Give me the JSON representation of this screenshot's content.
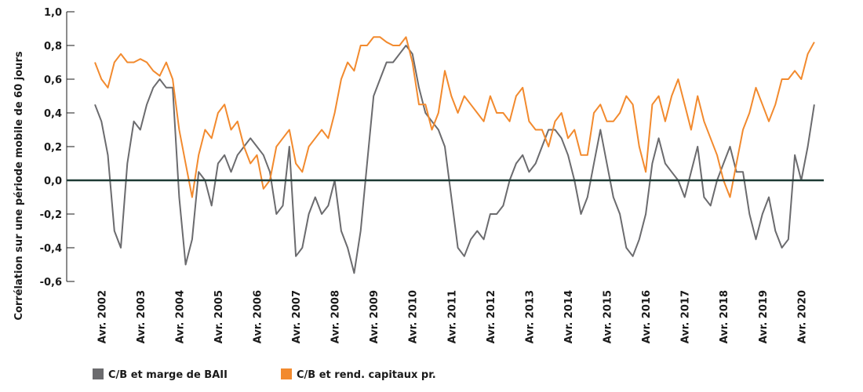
{
  "chart_data": {
    "type": "line",
    "y_label": "Corrélation sur une période mobile de 60 jours",
    "categories": [
      null,
      "Avr. 2002",
      null,
      null,
      null,
      null,
      null,
      "Avr. 2003",
      null,
      null,
      null,
      null,
      null,
      "Avr. 2004",
      null,
      null,
      null,
      null,
      null,
      "Avr. 2005",
      null,
      null,
      null,
      null,
      null,
      "Avr. 2006",
      null,
      null,
      null,
      null,
      null,
      "Avr. 2007",
      null,
      null,
      null,
      null,
      null,
      "Avr. 2008",
      null,
      null,
      null,
      null,
      null,
      "Avr. 2009",
      null,
      null,
      null,
      null,
      null,
      "Avr. 2010",
      null,
      null,
      null,
      null,
      null,
      "Avr. 2011",
      null,
      null,
      null,
      null,
      null,
      "Avr. 2012",
      null,
      null,
      null,
      null,
      null,
      "Avr. 2013",
      null,
      null,
      null,
      null,
      null,
      "Avr. 2014",
      null,
      null,
      null,
      null,
      null,
      "Avr. 2015",
      null,
      null,
      null,
      null,
      null,
      "Avr. 2016",
      null,
      null,
      null,
      null,
      null,
      "Avr. 2017",
      null,
      null,
      null,
      null,
      null,
      "Avr. 2018",
      null,
      null,
      null,
      null,
      null,
      "Avr. 2019",
      null,
      null,
      null,
      null,
      null,
      "Avr. 2020",
      null,
      null
    ],
    "series": [
      {
        "name": "C/B et marge de BAII",
        "color": "#6b6b6e",
        "values": [
          0.45,
          0.35,
          0.15,
          -0.3,
          -0.4,
          0.1,
          0.35,
          0.3,
          0.45,
          0.55,
          0.6,
          0.55,
          0.55,
          -0.1,
          -0.5,
          -0.35,
          0.05,
          0.0,
          -0.15,
          0.1,
          0.15,
          0.05,
          0.15,
          0.2,
          0.25,
          0.2,
          0.15,
          0.05,
          -0.2,
          -0.15,
          0.2,
          -0.45,
          -0.4,
          -0.2,
          -0.1,
          -0.2,
          -0.15,
          0.0,
          -0.3,
          -0.4,
          -0.55,
          -0.3,
          0.1,
          0.5,
          0.6,
          0.7,
          0.7,
          0.75,
          0.8,
          0.75,
          0.55,
          0.4,
          0.35,
          0.3,
          0.2,
          -0.1,
          -0.4,
          -0.45,
          -0.35,
          -0.3,
          -0.35,
          -0.2,
          -0.2,
          -0.15,
          0.0,
          0.1,
          0.15,
          0.05,
          0.1,
          0.2,
          0.3,
          0.3,
          0.25,
          0.15,
          0.0,
          -0.2,
          -0.1,
          0.1,
          0.3,
          0.1,
          -0.1,
          -0.2,
          -0.4,
          -0.45,
          -0.35,
          -0.2,
          0.1,
          0.25,
          0.1,
          0.05,
          0.0,
          -0.1,
          0.05,
          0.2,
          -0.1,
          -0.15,
          0.0,
          0.1,
          0.2,
          0.05,
          0.05,
          -0.2,
          -0.35,
          -0.2,
          -0.1,
          -0.3,
          -0.4,
          -0.35,
          0.15,
          0.0,
          0.2,
          0.45
        ]
      },
      {
        "name": "C/B et rend. capitaux pr.",
        "color": "#f28a2e",
        "values": [
          0.7,
          0.6,
          0.55,
          0.7,
          0.75,
          0.7,
          0.7,
          0.72,
          0.7,
          0.65,
          0.62,
          0.7,
          0.6,
          0.3,
          0.1,
          -0.1,
          0.15,
          0.3,
          0.25,
          0.4,
          0.45,
          0.3,
          0.35,
          0.2,
          0.1,
          0.15,
          -0.05,
          0.0,
          0.2,
          0.25,
          0.3,
          0.1,
          0.05,
          0.2,
          0.25,
          0.3,
          0.25,
          0.4,
          0.6,
          0.7,
          0.65,
          0.8,
          0.8,
          0.85,
          0.85,
          0.82,
          0.8,
          0.8,
          0.85,
          0.7,
          0.45,
          0.45,
          0.3,
          0.4,
          0.65,
          0.5,
          0.4,
          0.5,
          0.45,
          0.4,
          0.35,
          0.5,
          0.4,
          0.4,
          0.35,
          0.5,
          0.55,
          0.35,
          0.3,
          0.3,
          0.2,
          0.35,
          0.4,
          0.25,
          0.3,
          0.15,
          0.15,
          0.4,
          0.45,
          0.35,
          0.35,
          0.4,
          0.5,
          0.45,
          0.2,
          0.05,
          0.45,
          0.5,
          0.35,
          0.5,
          0.6,
          0.45,
          0.3,
          0.5,
          0.35,
          0.25,
          0.15,
          0.0,
          -0.1,
          0.1,
          0.3,
          0.4,
          0.55,
          0.45,
          0.35,
          0.45,
          0.6,
          0.6,
          0.65,
          0.6,
          0.75,
          0.82
        ]
      }
    ],
    "ylim": [
      -0.6,
      1.0
    ],
    "yticks": [
      {
        "value": 1.0,
        "label": "1,0"
      },
      {
        "value": 0.8,
        "label": "0,8"
      },
      {
        "value": 0.6,
        "label": "0,6"
      },
      {
        "value": 0.4,
        "label": "0,4"
      },
      {
        "value": 0.2,
        "label": "0,2"
      },
      {
        "value": 0,
        "label": "0,0"
      },
      {
        "value": -0.2,
        "label": "-0,2"
      },
      {
        "value": -0.4,
        "label": "-0,4"
      },
      {
        "value": -0.6,
        "label": "-0,6"
      }
    ]
  }
}
